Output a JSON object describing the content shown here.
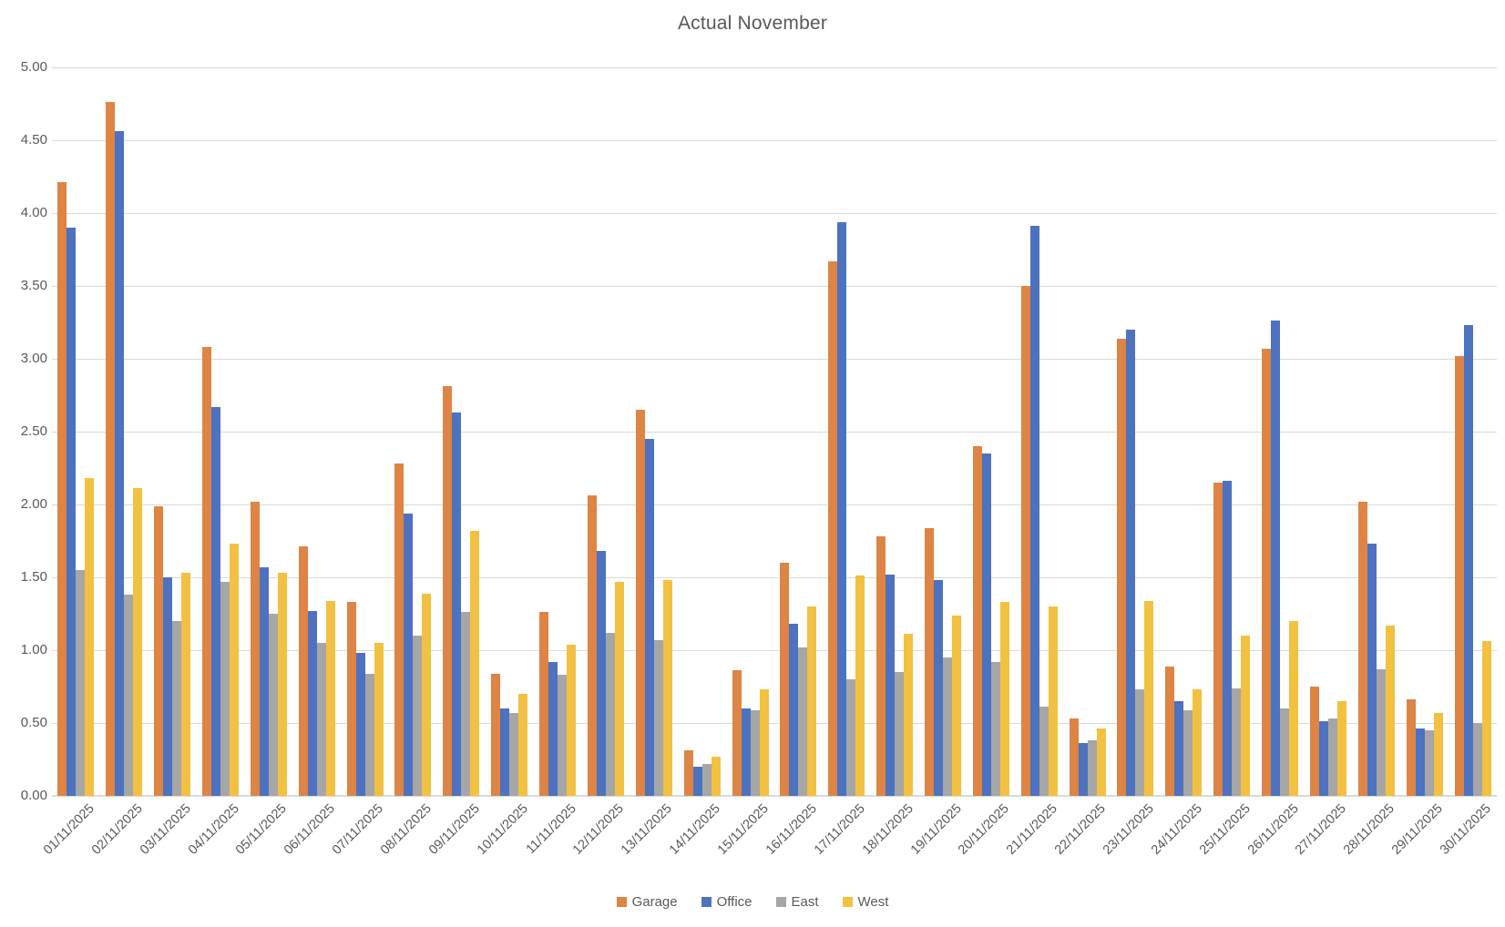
{
  "chart_data": {
    "type": "bar",
    "title": "Actual November",
    "categories": [
      "01/11/2025",
      "02/11/2025",
      "03/11/2025",
      "04/11/2025",
      "05/11/2025",
      "06/11/2025",
      "07/11/2025",
      "08/11/2025",
      "09/11/2025",
      "10/11/2025",
      "11/11/2025",
      "12/11/2025",
      "13/11/2025",
      "14/11/2025",
      "15/11/2025",
      "16/11/2025",
      "17/11/2025",
      "18/11/2025",
      "19/11/2025",
      "20/11/2025",
      "21/11/2025",
      "22/11/2025",
      "23/11/2025",
      "24/11/2025",
      "25/11/2025",
      "26/11/2025",
      "27/11/2025",
      "28/11/2025",
      "29/11/2025",
      "30/11/2025"
    ],
    "series": [
      {
        "name": "Garage",
        "color": "#DE8444",
        "values": [
          4.21,
          4.76,
          1.99,
          3.08,
          2.02,
          1.71,
          1.33,
          2.28,
          2.81,
          0.84,
          1.26,
          2.06,
          2.65,
          0.31,
          0.86,
          1.6,
          3.67,
          1.78,
          1.84,
          2.4,
          3.5,
          0.53,
          3.14,
          0.89,
          2.15,
          3.07,
          0.75,
          2.02,
          0.66,
          3.02
        ]
      },
      {
        "name": "Office",
        "color": "#4C72C0",
        "values": [
          3.9,
          4.56,
          1.5,
          2.67,
          1.57,
          1.27,
          0.98,
          1.94,
          2.63,
          0.6,
          0.92,
          1.68,
          2.45,
          0.2,
          0.6,
          1.18,
          3.94,
          1.52,
          1.48,
          2.35,
          3.91,
          0.36,
          3.2,
          0.65,
          2.16,
          3.26,
          0.51,
          1.73,
          0.46,
          3.23
        ]
      },
      {
        "name": "East",
        "color": "#A6A6A6",
        "values": [
          1.55,
          1.38,
          1.2,
          1.47,
          1.25,
          1.05,
          0.84,
          1.1,
          1.26,
          0.57,
          0.83,
          1.12,
          1.07,
          0.22,
          0.59,
          1.02,
          0.8,
          0.85,
          0.95,
          0.92,
          0.61,
          0.38,
          0.73,
          0.59,
          0.74,
          0.6,
          0.53,
          0.87,
          0.45,
          0.5
        ]
      },
      {
        "name": "West",
        "color": "#F2C141",
        "values": [
          2.18,
          2.11,
          1.53,
          1.73,
          1.53,
          1.34,
          1.05,
          1.39,
          1.82,
          0.7,
          1.04,
          1.47,
          1.48,
          0.27,
          0.73,
          1.3,
          1.51,
          1.11,
          1.24,
          1.33,
          1.3,
          0.46,
          1.34,
          0.73,
          1.1,
          1.2,
          0.65,
          1.17,
          0.57,
          1.06
        ]
      }
    ],
    "ylim": [
      0,
      5
    ],
    "ytick_step": 0.5,
    "ytick_labels": [
      "0.00",
      "0.50",
      "1.00",
      "1.50",
      "2.00",
      "2.50",
      "3.00",
      "3.50",
      "4.00",
      "4.50",
      "5.00"
    ],
    "grid": true,
    "legend_position": "bottom",
    "legend": [
      "Garage",
      "Office",
      "East",
      "West"
    ]
  },
  "colors": {
    "text": "#595959",
    "gridline": "#d9d9d9",
    "background": "#ffffff"
  }
}
